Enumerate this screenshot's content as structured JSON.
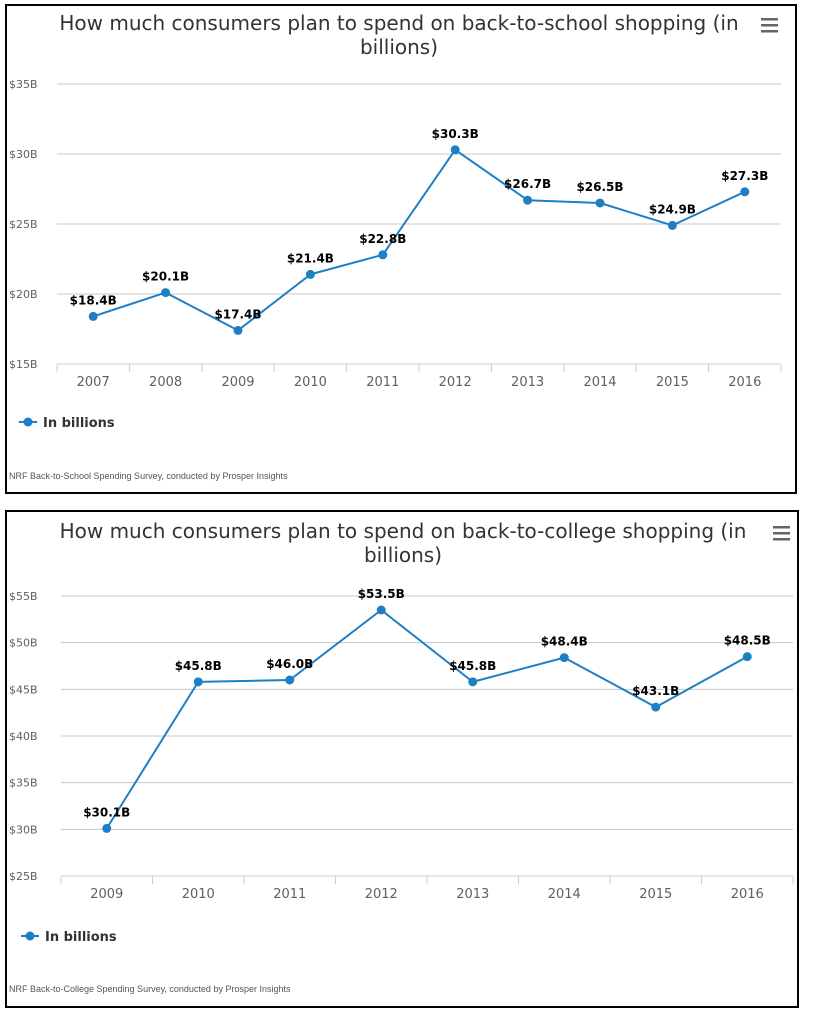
{
  "colors": {
    "series": "#1f7fc4",
    "grid": "#c8c8c8",
    "text": "#333333"
  },
  "icons": {
    "menu": "hamburger-menu-icon"
  },
  "chart_data": [
    {
      "type": "line",
      "title_line1": "How much consumers plan to spend on back-to-school shopping (in",
      "title_line2": "billions)",
      "categories": [
        "2007",
        "2008",
        "2009",
        "2010",
        "2011",
        "2012",
        "2013",
        "2014",
        "2015",
        "2016"
      ],
      "series": [
        {
          "name": "In billions",
          "values": [
            18.4,
            20.1,
            17.4,
            21.4,
            22.8,
            30.3,
            26.7,
            26.5,
            24.9,
            27.3
          ],
          "labels": [
            "$18.4B",
            "$20.1B",
            "$17.4B",
            "$21.4B",
            "$22.8B",
            "$30.3B",
            "$26.7B",
            "$26.5B",
            "$24.9B",
            "$27.3B"
          ]
        }
      ],
      "yticks": [
        "$15B",
        "$20B",
        "$25B",
        "$30B",
        "$35B"
      ],
      "ytick_values": [
        15,
        20,
        25,
        30,
        35
      ],
      "ylim": [
        15,
        35
      ],
      "grid": true,
      "legend": "bottom-left",
      "credit": "NRF Back-to-School Spending Survey, conducted by Prosper Insights"
    },
    {
      "type": "line",
      "title_line1": "How much consumers plan to spend on back-to-college shopping (in",
      "title_line2": "billions)",
      "categories": [
        "2009",
        "2010",
        "2011",
        "2012",
        "2013",
        "2014",
        "2015",
        "2016"
      ],
      "series": [
        {
          "name": "In billions",
          "values": [
            30.1,
            45.8,
            46.0,
            53.5,
            45.8,
            48.4,
            43.1,
            48.5
          ],
          "labels": [
            "$30.1B",
            "$45.8B",
            "$46.0B",
            "$53.5B",
            "$45.8B",
            "$48.4B",
            "$43.1B",
            "$48.5B"
          ]
        }
      ],
      "yticks": [
        "$25B",
        "$30B",
        "$35B",
        "$40B",
        "$45B",
        "$50B",
        "$55B"
      ],
      "ytick_values": [
        25,
        30,
        35,
        40,
        45,
        50,
        55
      ],
      "ylim": [
        25,
        55
      ],
      "grid": true,
      "legend": "bottom-left",
      "credit": "NRF Back-to-College Spending Survey, conducted by Prosper Insights"
    }
  ]
}
